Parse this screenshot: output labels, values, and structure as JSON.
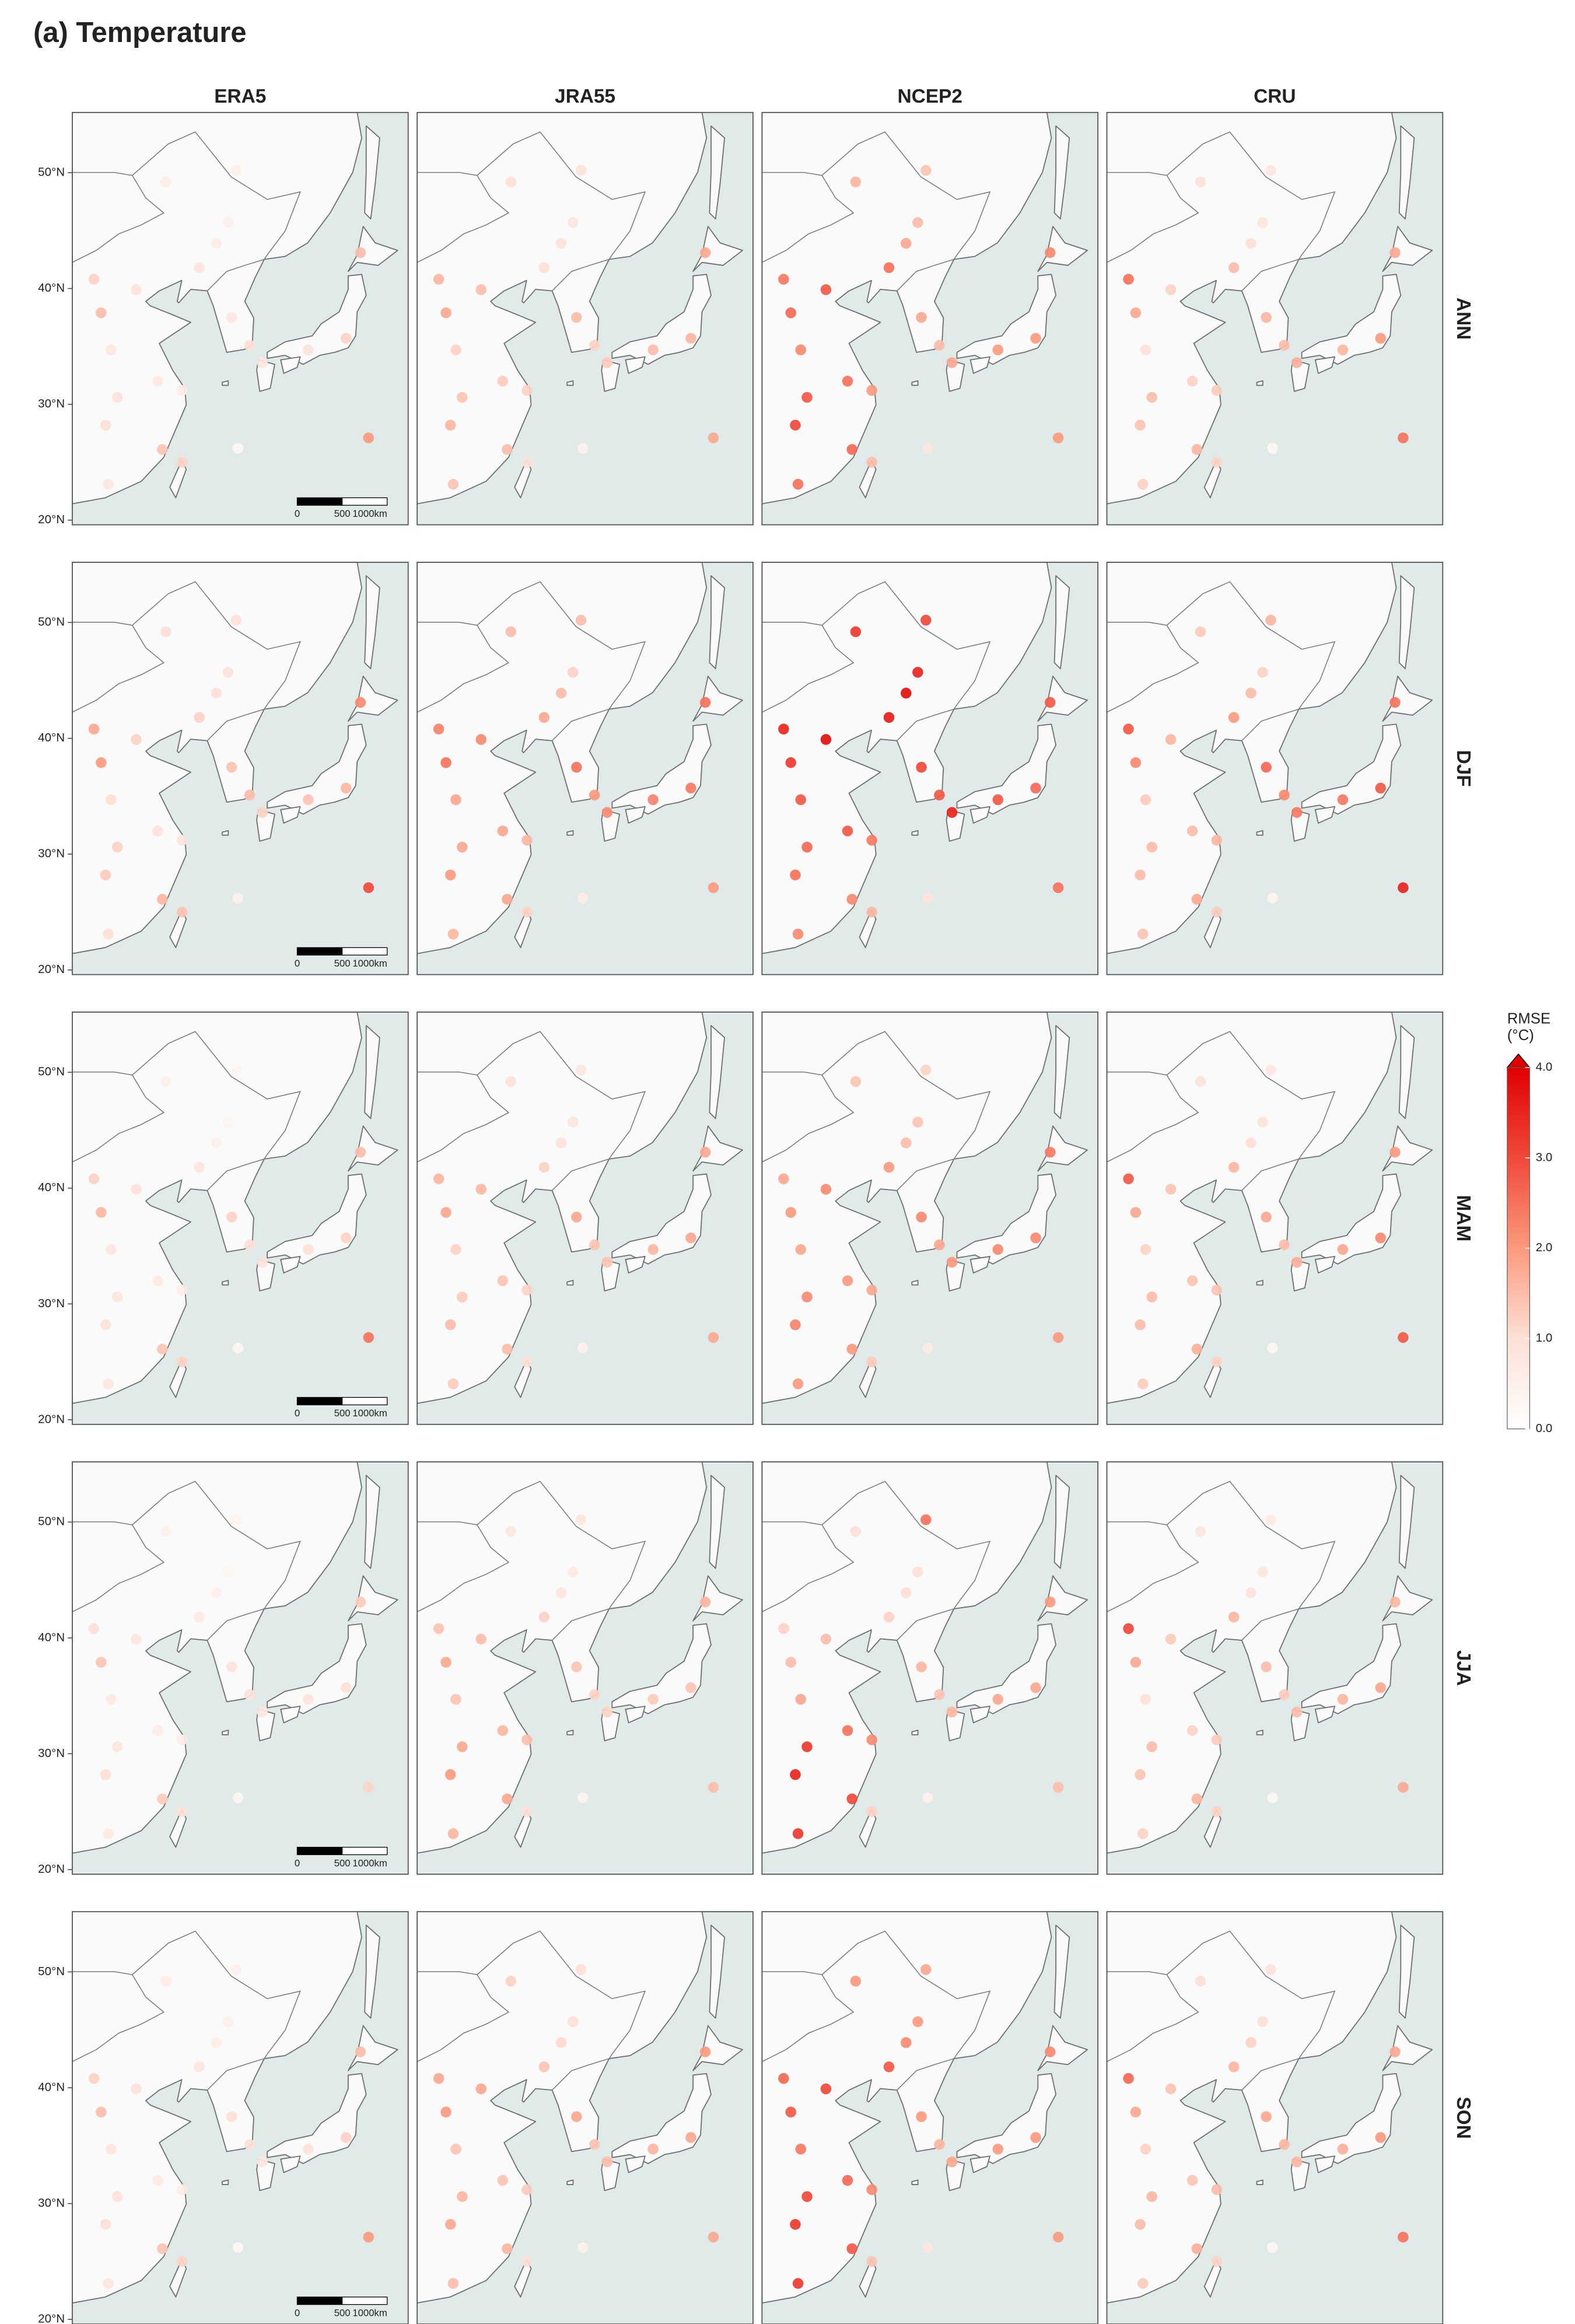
{
  "title": "(a) Temperature",
  "columns": [
    "ERA5",
    "JRA55",
    "NCEP2",
    "CRU"
  ],
  "xlim": [
    109.3,
    146.6
  ],
  "ylim": [
    19.6,
    55.2
  ],
  "yticks": [
    {
      "value": 20,
      "label": "20°N"
    },
    {
      "value": 30,
      "label": "30°N"
    },
    {
      "value": 40,
      "label": "40°N"
    },
    {
      "value": 50,
      "label": "50°N"
    }
  ],
  "scale_bar": [
    "0",
    "500",
    "1000km"
  ],
  "stations": [
    [
      126.6,
      45.7
    ],
    [
      125.3,
      43.9
    ],
    [
      123.4,
      41.8
    ],
    [
      116.4,
      39.9
    ],
    [
      111.7,
      40.8
    ],
    [
      112.5,
      37.9
    ],
    [
      113.6,
      34.7
    ],
    [
      118.8,
      32.0
    ],
    [
      121.5,
      31.2
    ],
    [
      114.3,
      30.6
    ],
    [
      113.0,
      28.2
    ],
    [
      119.3,
      26.1
    ],
    [
      113.3,
      23.1
    ],
    [
      127.5,
      50.2
    ],
    [
      119.7,
      49.2
    ],
    [
      127.0,
      37.5
    ],
    [
      129.0,
      35.1
    ],
    [
      139.7,
      35.7
    ],
    [
      141.3,
      43.1
    ],
    [
      135.5,
      34.7
    ],
    [
      130.4,
      33.6
    ],
    [
      127.7,
      26.2
    ],
    [
      142.2,
      27.1
    ],
    [
      121.5,
      25.0
    ]
  ],
  "rows": [
    {
      "label": "ANN",
      "panels": [
        [
          0.5,
          0.6,
          0.8,
          0.9,
          1.2,
          1.5,
          0.8,
          0.7,
          0.6,
          0.9,
          1.0,
          1.4,
          0.8,
          0.5,
          0.6,
          0.8,
          1.0,
          1.2,
          1.5,
          0.9,
          0.8,
          0.3,
          2.0,
          1.2
        ],
        [
          0.8,
          0.9,
          1.0,
          1.5,
          1.6,
          1.8,
          1.2,
          1.3,
          1.2,
          1.4,
          1.6,
          1.5,
          1.4,
          0.9,
          1.0,
          1.5,
          1.2,
          1.6,
          1.8,
          1.5,
          1.3,
          0.5,
          1.8,
          1.0
        ],
        [
          1.5,
          1.8,
          2.5,
          2.8,
          2.4,
          2.6,
          2.2,
          2.5,
          2.0,
          2.8,
          3.0,
          2.6,
          2.5,
          1.4,
          1.6,
          1.8,
          1.5,
          2.0,
          2.2,
          2.0,
          1.8,
          0.8,
          2.0,
          1.5
        ],
        [
          0.8,
          1.0,
          1.5,
          1.2,
          2.5,
          1.8,
          1.0,
          1.2,
          1.3,
          1.5,
          1.4,
          1.6,
          1.2,
          0.8,
          0.9,
          1.6,
          1.5,
          2.0,
          1.8,
          1.6,
          1.7,
          0.3,
          2.5,
          1.2
        ]
      ]
    },
    {
      "label": "DJF",
      "panels": [
        [
          0.9,
          1.0,
          1.2,
          1.2,
          1.8,
          2.0,
          1.0,
          0.9,
          0.8,
          1.2,
          1.3,
          1.6,
          1.0,
          1.0,
          1.0,
          1.4,
          1.5,
          1.6,
          2.2,
          1.4,
          1.2,
          0.5,
          3.0,
          1.4
        ],
        [
          1.2,
          1.5,
          1.8,
          2.2,
          2.3,
          2.5,
          1.8,
          1.8,
          1.6,
          1.8,
          2.0,
          1.8,
          1.6,
          1.5,
          1.5,
          2.5,
          2.0,
          2.4,
          2.5,
          2.3,
          2.2,
          0.6,
          2.0,
          1.2
        ],
        [
          3.5,
          3.8,
          3.6,
          3.8,
          3.5,
          3.2,
          2.8,
          2.8,
          2.4,
          2.6,
          2.5,
          2.2,
          2.2,
          3.0,
          3.2,
          3.0,
          2.8,
          2.6,
          2.8,
          2.8,
          3.5,
          0.9,
          2.5,
          1.6
        ],
        [
          1.2,
          1.5,
          2.0,
          1.6,
          2.8,
          2.2,
          1.3,
          1.5,
          1.6,
          1.5,
          1.5,
          1.8,
          1.4,
          1.6,
          1.3,
          2.6,
          2.2,
          2.8,
          2.5,
          2.4,
          2.4,
          0.4,
          3.5,
          1.3
        ]
      ]
    },
    {
      "label": "MAM",
      "panels": [
        [
          0.4,
          0.5,
          0.8,
          0.9,
          1.2,
          1.6,
          0.8,
          0.7,
          0.6,
          0.8,
          0.9,
          1.4,
          0.8,
          0.4,
          0.5,
          1.2,
          1.0,
          1.2,
          1.5,
          1.0,
          0.9,
          0.3,
          2.5,
          1.2
        ],
        [
          0.8,
          0.9,
          1.2,
          1.6,
          1.6,
          1.8,
          1.2,
          1.4,
          1.2,
          1.3,
          1.5,
          1.5,
          1.3,
          0.8,
          0.9,
          1.8,
          1.4,
          1.8,
          1.8,
          1.6,
          1.4,
          0.5,
          1.8,
          1.0
        ],
        [
          1.4,
          1.5,
          2.0,
          2.2,
          1.8,
          2.0,
          1.8,
          2.0,
          1.8,
          2.2,
          2.3,
          2.0,
          2.0,
          1.2,
          1.4,
          2.2,
          1.8,
          2.2,
          2.4,
          2.2,
          2.0,
          0.7,
          2.0,
          1.3
        ],
        [
          0.9,
          1.0,
          1.6,
          1.4,
          2.8,
          1.8,
          1.2,
          1.4,
          1.4,
          1.5,
          1.5,
          1.7,
          1.3,
          0.8,
          0.9,
          1.8,
          1.5,
          2.2,
          2.0,
          1.8,
          1.7,
          0.3,
          2.8,
          1.2
        ]
      ]
    },
    {
      "label": "JJA",
      "panels": [
        [
          0.4,
          0.5,
          0.7,
          0.8,
          1.0,
          1.4,
          0.7,
          0.6,
          0.6,
          0.8,
          1.0,
          1.3,
          0.7,
          0.4,
          0.5,
          0.9,
          0.9,
          1.0,
          1.3,
          0.9,
          0.8,
          0.3,
          1.2,
          1.0
        ],
        [
          0.7,
          0.8,
          1.2,
          1.5,
          1.4,
          1.8,
          1.4,
          1.6,
          1.5,
          1.8,
          2.0,
          1.8,
          1.6,
          0.8,
          0.8,
          1.4,
          1.2,
          1.4,
          1.6,
          1.3,
          1.2,
          0.4,
          1.5,
          1.0
        ],
        [
          1.0,
          1.0,
          1.2,
          1.5,
          1.2,
          1.5,
          1.8,
          2.5,
          2.2,
          3.2,
          3.5,
          3.0,
          3.2,
          2.5,
          1.0,
          1.6,
          1.4,
          1.8,
          2.0,
          1.8,
          1.6,
          0.5,
          1.5,
          1.2
        ],
        [
          0.8,
          0.9,
          1.6,
          1.3,
          3.0,
          1.8,
          1.0,
          1.2,
          1.3,
          1.5,
          1.4,
          1.6,
          1.2,
          0.7,
          0.8,
          1.5,
          1.3,
          1.8,
          1.6,
          1.6,
          1.5,
          0.3,
          1.8,
          1.2
        ]
      ]
    },
    {
      "label": "SON",
      "panels": [
        [
          0.5,
          0.6,
          0.8,
          0.9,
          1.2,
          1.5,
          0.8,
          0.7,
          0.6,
          0.9,
          1.0,
          1.4,
          0.8,
          0.5,
          0.6,
          1.0,
          1.0,
          1.2,
          1.5,
          0.9,
          0.8,
          0.3,
          2.0,
          1.2
        ],
        [
          1.0,
          1.1,
          1.4,
          1.8,
          1.8,
          2.0,
          1.4,
          1.4,
          1.3,
          1.6,
          1.8,
          1.6,
          1.5,
          1.0,
          1.2,
          1.8,
          1.4,
          1.8,
          2.0,
          1.6,
          1.5,
          0.5,
          1.8,
          1.0
        ],
        [
          2.0,
          2.2,
          2.8,
          3.0,
          2.6,
          2.8,
          2.4,
          2.6,
          2.2,
          3.0,
          3.2,
          2.8,
          3.2,
          1.8,
          2.0,
          2.0,
          1.6,
          2.0,
          2.2,
          2.0,
          1.8,
          0.8,
          2.0,
          1.4
        ],
        [
          1.0,
          1.2,
          1.6,
          1.4,
          2.6,
          1.8,
          1.2,
          1.4,
          1.5,
          1.6,
          1.5,
          1.7,
          1.3,
          0.9,
          1.0,
          1.8,
          1.6,
          2.0,
          1.8,
          1.7,
          1.6,
          0.3,
          2.5,
          1.2
        ]
      ]
    }
  ],
  "colorbar": {
    "title": [
      "RMSE",
      "(°C)"
    ],
    "lim": [
      0,
      4
    ],
    "ticks": [
      {
        "value": 0,
        "label": "0.0"
      },
      {
        "value": 1,
        "label": "1.0"
      },
      {
        "value": 2,
        "label": "2.0"
      },
      {
        "value": 3,
        "label": "3.0"
      },
      {
        "value": 4,
        "label": "4.0"
      }
    ],
    "colors": [
      "#ffffff",
      "#fde0d6",
      "#fb9a7e",
      "#f0493a",
      "#e00000"
    ]
  }
}
